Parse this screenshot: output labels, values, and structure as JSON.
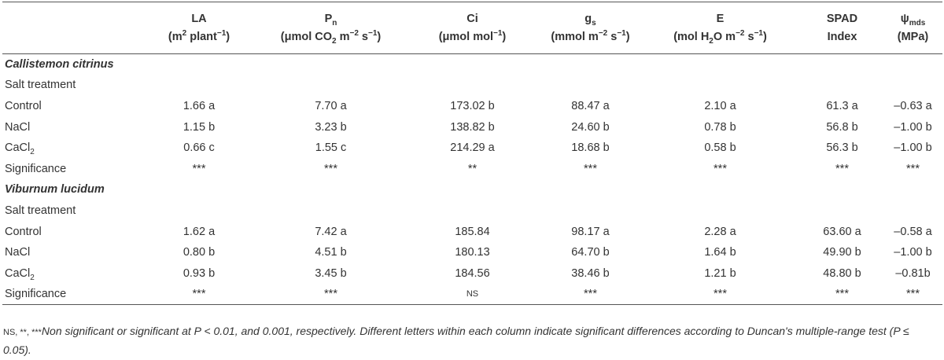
{
  "table": {
    "columns": [
      {
        "line1": [
          {
            "text": "LA"
          }
        ],
        "line2": [
          {
            "text": "(m"
          },
          {
            "sup": "2"
          },
          {
            "text": " plant"
          },
          {
            "sup": "−1"
          },
          {
            "text": ")"
          }
        ]
      },
      {
        "line1": [
          {
            "text": "P"
          },
          {
            "sub": "n"
          }
        ],
        "line2": [
          {
            "text": "(μmol CO"
          },
          {
            "sub": "2"
          },
          {
            "text": " m"
          },
          {
            "sup": "−2"
          },
          {
            "text": " s"
          },
          {
            "sup": "−1"
          },
          {
            "text": ")"
          }
        ]
      },
      {
        "line1": [
          {
            "text": "Ci"
          }
        ],
        "line2": [
          {
            "text": "(μmol mol"
          },
          {
            "sup": "−1"
          },
          {
            "text": ")"
          }
        ]
      },
      {
        "line1": [
          {
            "text": "g"
          },
          {
            "sub": "s"
          }
        ],
        "line2": [
          {
            "text": "(mmol m"
          },
          {
            "sup": "−2"
          },
          {
            "text": " s"
          },
          {
            "sup": "−1"
          },
          {
            "text": ")"
          }
        ]
      },
      {
        "line1": [
          {
            "text": "E"
          }
        ],
        "line2": [
          {
            "text": "(mol H"
          },
          {
            "sub": "2"
          },
          {
            "text": "O m"
          },
          {
            "sup": "−2"
          },
          {
            "text": " s"
          },
          {
            "sup": "−1"
          },
          {
            "text": ")"
          }
        ]
      },
      {
        "line1": [
          {
            "text": "SPAD"
          }
        ],
        "line2": [
          {
            "text": "Index"
          }
        ]
      },
      {
        "line1": [
          {
            "text": "ψ"
          },
          {
            "sub": "mds"
          }
        ],
        "line2": [
          {
            "text": "(MPa)"
          }
        ]
      }
    ],
    "groups": [
      {
        "name": "Callistemon citrinus",
        "subheading": "Salt treatment",
        "rows": [
          {
            "label": [
              {
                "text": "Control"
              }
            ],
            "cells": [
              "1.66 a",
              "7.70 a",
              "173.02 b",
              "88.47 a",
              "2.10 a",
              "61.3 a",
              "–0.63 a"
            ]
          },
          {
            "label": [
              {
                "text": "NaCl"
              }
            ],
            "cells": [
              "1.15 b",
              "3.23 b",
              "138.82 b",
              "24.60 b",
              "0.78 b",
              "56.8 b",
              "–1.00 b"
            ]
          },
          {
            "label": [
              {
                "text": "CaCl"
              },
              {
                "sub": "2"
              }
            ],
            "cells": [
              "0.66 c",
              "1.55 c",
              "214.29 a",
              "18.68 b",
              "0.58 b",
              "56.3 b",
              "–1.00 b"
            ]
          },
          {
            "label": [
              {
                "text": "Significance"
              }
            ],
            "cells": [
              "***",
              "***",
              "**",
              "***",
              "***",
              "***",
              "***"
            ]
          }
        ]
      },
      {
        "name": "Viburnum lucidum",
        "subheading": "Salt treatment",
        "rows": [
          {
            "label": [
              {
                "text": "Control"
              }
            ],
            "cells": [
              "1.62 a",
              "7.42 a",
              "185.84",
              "98.17 a",
              "2.28 a",
              "63.60 a",
              "–0.58 a"
            ]
          },
          {
            "label": [
              {
                "text": "NaCl"
              }
            ],
            "cells": [
              "0.80 b",
              "4.51 b",
              "180.13",
              "64.70 b",
              "1.64 b",
              "49.90 b",
              "–1.00 b"
            ]
          },
          {
            "label": [
              {
                "text": "CaCl"
              },
              {
                "sub": "2"
              }
            ],
            "cells": [
              "0.93 b",
              "3.45 b",
              "184.56",
              "38.46 b",
              "1.21 b",
              "48.80 b",
              "–0.81b"
            ]
          },
          {
            "label": [
              {
                "text": "Significance"
              }
            ],
            "cells": [
              "***",
              "***",
              "NS",
              "***",
              "***",
              "***",
              "***"
            ]
          }
        ]
      }
    ]
  },
  "footnote": {
    "marker": "NS, **, ***",
    "text": "Non significant or significant at P < 0.01, and 0.001, respectively. Different letters within each column indicate significant differences according to Duncan's multiple-range test (P ≤ 0.05)."
  }
}
